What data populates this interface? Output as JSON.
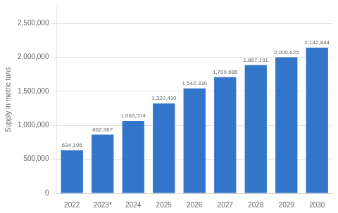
{
  "chart_data": {
    "type": "bar",
    "ylabel": "Supply in metric tons",
    "categories": [
      "2022",
      "2023*",
      "2024",
      "2025",
      "2026",
      "2027",
      "2028",
      "2029",
      "2030"
    ],
    "values": [
      634195,
      862967,
      1065574,
      1320410,
      1542330,
      1709686,
      1887191,
      2000625,
      2142844
    ],
    "value_labels": [
      "634,195",
      "862,967",
      "1,065,574",
      "1,320,410",
      "1,542,330",
      "1,709,686",
      "1,887,191",
      "2,000,625",
      "2,142,844"
    ],
    "data_labels": true,
    "color": "#3375c8",
    "ylim": [
      0,
      2750000
    ],
    "yticks": [
      0,
      {
        "value": 500000,
        "label": "500,000"
      },
      {
        "value": 1000000,
        "label": "1,000,000"
      },
      {
        "value": 1500000,
        "label": "1,500,000"
      },
      {
        "value": 2000000,
        "label": "2,000,000"
      },
      {
        "value": 2500000,
        "label": "2,500,000"
      }
    ],
    "grid": true
  }
}
